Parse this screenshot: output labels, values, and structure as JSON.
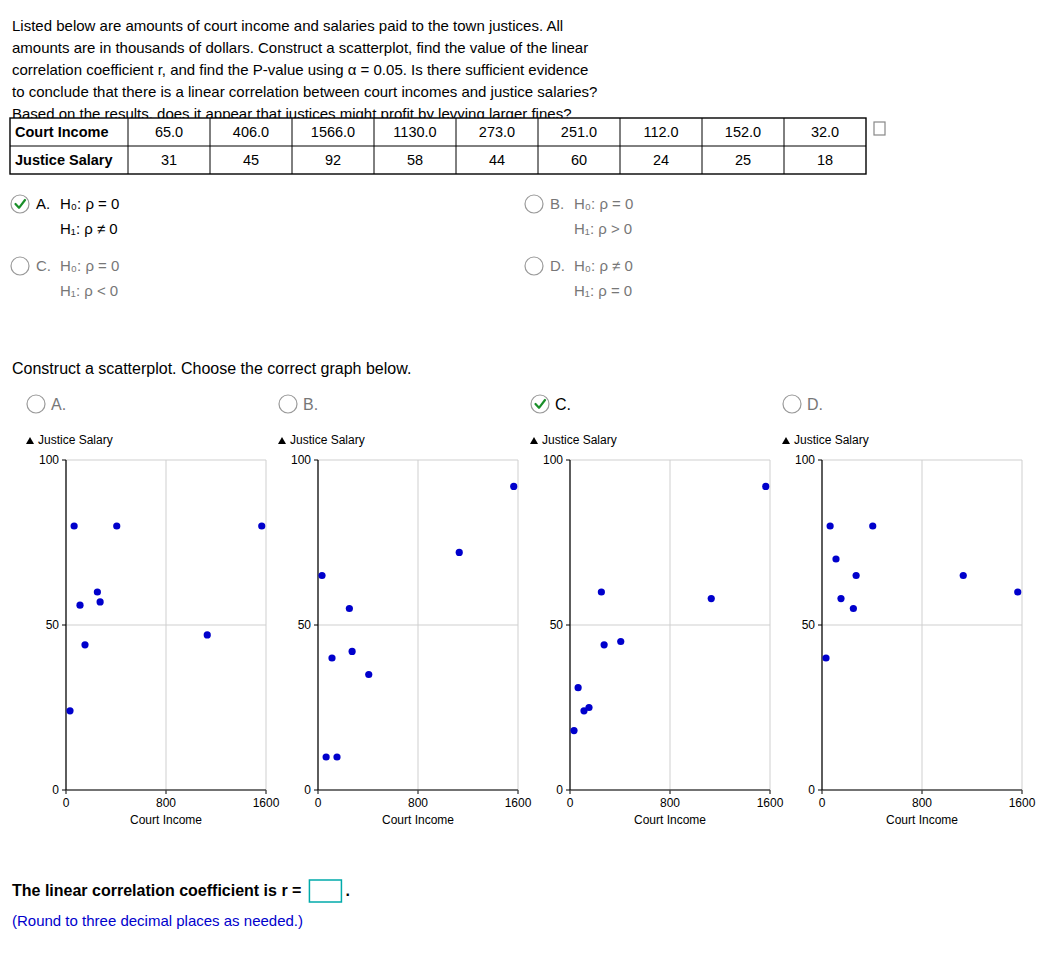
{
  "paragraph": [
    "Listed below are amounts of court income and salaries paid to the town justices. All",
    "amounts are in thousands of dollars. Construct a scatterplot, find the value of the linear",
    "correlation coefficient r, and find the P-value using α = 0.05. Is there sufficient evidence",
    "to conclude that there is a linear correlation between court incomes and justice salaries?",
    "Based on the results, does it appear that justices might profit by levying larger fines?"
  ],
  "table": {
    "row_labels": [
      "Court Income",
      "Justice Salary"
    ],
    "rows": [
      [
        "65.0",
        "406.0",
        "1566.0",
        "1130.0",
        "273.0",
        "251.0",
        "112.0",
        "152.0",
        "32.0"
      ],
      [
        "31",
        "45",
        "92",
        "58",
        "44",
        "60",
        "24",
        "25",
        "18"
      ]
    ]
  },
  "hypothesis_options": [
    {
      "label": "A.",
      "h0": "H₀: ρ = 0",
      "h1": "H₁: ρ ≠ 0"
    },
    {
      "label": "B.",
      "h0": "H₀: ρ = 0",
      "h1": "H₁: ρ > 0"
    },
    {
      "label": "C.",
      "h0": "H₀: ρ = 0",
      "h1": "H₁: ρ < 0"
    },
    {
      "label": "D.",
      "h0": "H₀: ρ ≠ 0",
      "h1": "H₁: ρ = 0"
    }
  ],
  "instruction": "Construct a scatterplot. Choose the correct graph below.",
  "answers": {
    "hypothesis": "A.",
    "scatterplot": "C."
  },
  "correlation_prompt": {
    "text": "The linear correlation coefficient is r =",
    "end": "."
  },
  "round_note": {
    "text": "(Round to three decimal places as needed.)",
    "color": "#0000CC"
  },
  "chart_data": [
    {
      "type": "scatter",
      "title": "A.",
      "xlabel": "Court Income",
      "ylabel": "Justice Salary",
      "x": [
        65.0,
        406.0,
        1566.0,
        1130.0,
        273.0,
        251.0,
        112.0,
        152.0,
        32.0
      ],
      "values": [
        80,
        80,
        80,
        47,
        57,
        60,
        56,
        44,
        24
      ],
      "color": "#0000CC",
      "xlim": [
        0,
        1600
      ],
      "ylim": [
        0,
        100
      ],
      "xticks": [
        0,
        800,
        1600
      ],
      "yticks": [
        0,
        50,
        100
      ],
      "grid": true
    },
    {
      "type": "scatter",
      "title": "B.",
      "xlabel": "Court Income",
      "ylabel": "Justice Salary",
      "x": [
        65.0,
        406.0,
        1566.0,
        1130.0,
        273.0,
        251.0,
        112.0,
        152.0,
        32.0
      ],
      "values": [
        10,
        35,
        92,
        72,
        42,
        55,
        40,
        10,
        65
      ],
      "color": "#0000CC",
      "xlim": [
        0,
        1600
      ],
      "ylim": [
        0,
        100
      ],
      "xticks": [
        0,
        800,
        1600
      ],
      "yticks": [
        0,
        50,
        100
      ],
      "grid": true
    },
    {
      "type": "scatter",
      "title": "C.",
      "xlabel": "Court Income",
      "ylabel": "Justice Salary",
      "x": [
        65.0,
        406.0,
        1566.0,
        1130.0,
        273.0,
        251.0,
        112.0,
        152.0,
        32.0
      ],
      "values": [
        31,
        45,
        92,
        58,
        44,
        60,
        24,
        25,
        18
      ],
      "color": "#0000CC",
      "xlim": [
        0,
        1600
      ],
      "ylim": [
        0,
        100
      ],
      "xticks": [
        0,
        800,
        1600
      ],
      "yticks": [
        0,
        50,
        100
      ],
      "grid": true
    },
    {
      "type": "scatter",
      "title": "D.",
      "xlabel": "Court Income",
      "ylabel": "Justice Salary",
      "x": [
        65.0,
        406.0,
        1566.0,
        1130.0,
        273.0,
        251.0,
        112.0,
        152.0,
        32.0
      ],
      "values": [
        80,
        80,
        60,
        65,
        65,
        55,
        70,
        58,
        40
      ],
      "color": "#0000CC",
      "xlim": [
        0,
        1600
      ],
      "ylim": [
        0,
        100
      ],
      "xticks": [
        0,
        800,
        1600
      ],
      "yticks": [
        0,
        50,
        100
      ],
      "grid": true
    }
  ]
}
